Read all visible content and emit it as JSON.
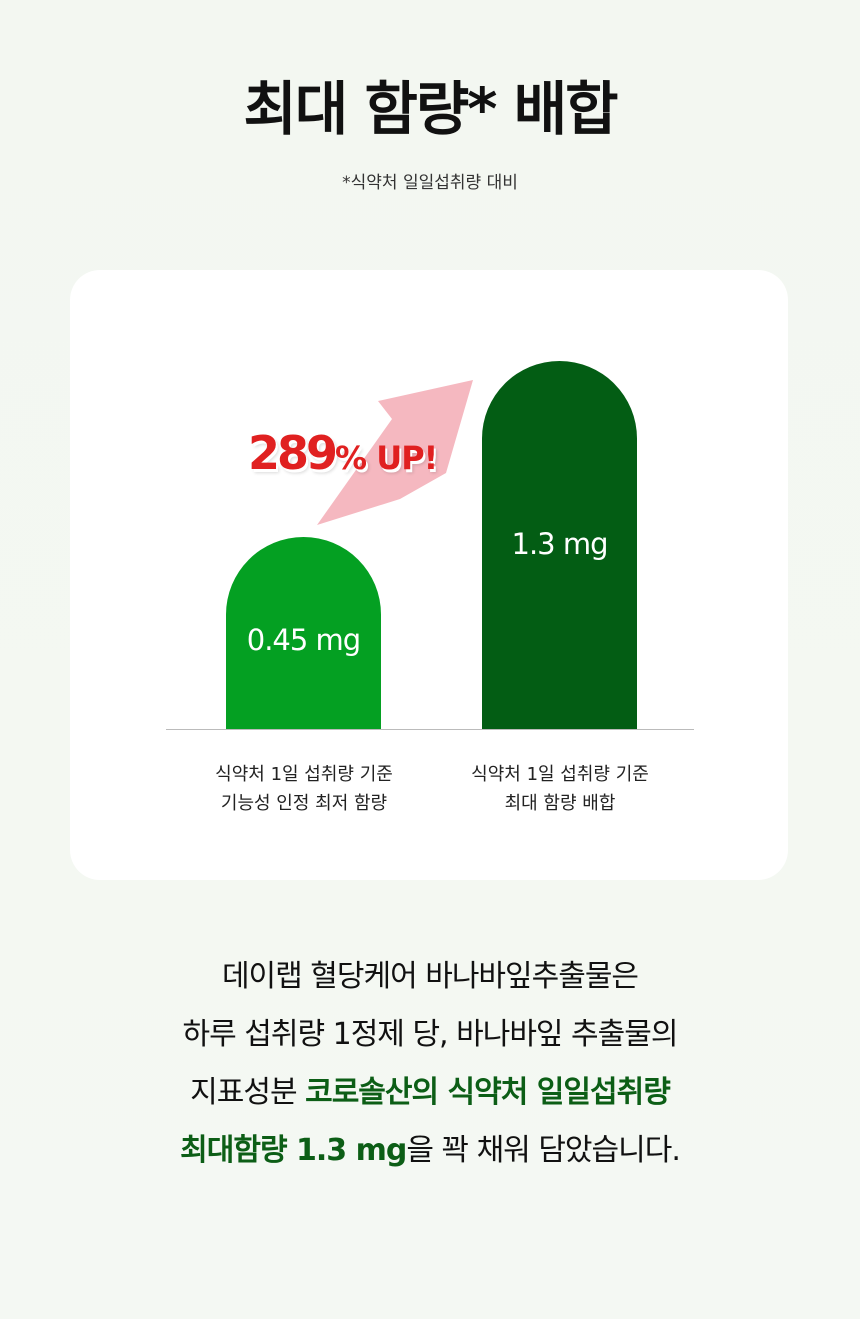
{
  "header": {
    "title": "최대 함량* 배합",
    "footnote": "*식약처 일일섭취량 대비"
  },
  "chart_data": {
    "type": "bar",
    "categories": [
      "식약처 1일 섭취량 기준\n기능성 인정 최저 함량",
      "식약처 1일 섭취량 기준\n최대 함량 배합"
    ],
    "category_lines": [
      [
        "식약처 1일 섭취량 기준",
        "기능성 인정 최저 함량"
      ],
      [
        "식약처 1일 섭취량 기준",
        "최대 함량 배합"
      ]
    ],
    "values": [
      0.45,
      1.3
    ],
    "unit": "mg",
    "data_labels": [
      "0.45 mg",
      "1.3 mg"
    ],
    "colors": [
      "#04a022",
      "#035d14"
    ],
    "annotation": {
      "number": "289",
      "suffix": "% UP!",
      "arrow_color": "#f5b8c0",
      "text_color": "#e02020"
    }
  },
  "description": {
    "line1": "데이랩 혈당케어 바나바잎추출물은",
    "line2": "하루 섭취량 1정제 당, 바나바잎 추출물의",
    "line3_plain": "지표성분 ",
    "line3_highlight": "코로솔산의 식약처 일일섭취량",
    "line4_highlight": "최대함량 1.3 mg",
    "line4_plain": "을 꽉 채워 담았습니다.",
    "highlight_color": "#0c5e16"
  }
}
